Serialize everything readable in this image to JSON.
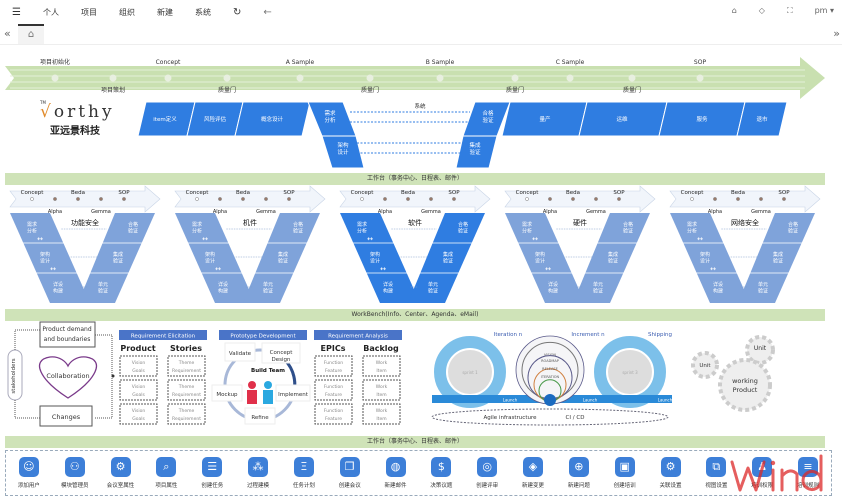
{
  "nav": {
    "menu_icon": "menu-icon",
    "items": [
      "个人",
      "项目",
      "组织",
      "新建",
      "系统"
    ],
    "refresh_icon": "refresh-icon",
    "back_icon": "back-arrow-icon",
    "right_icons": [
      "cloud-icon",
      "tag-icon",
      "fullscreen-icon"
    ],
    "user": "pm ▾"
  },
  "tabs": {
    "prev": "«",
    "next": "»",
    "home_icon": "home-icon",
    "home": "⌂"
  },
  "roadmap": {
    "top": [
      "项目初始化",
      "Concept",
      "A Sample",
      "B Sample",
      "C Sample",
      "SOP"
    ],
    "bottom": [
      "项目策划",
      "质量门",
      "质量门",
      "质量门",
      "质量门"
    ]
  },
  "logo": {
    "tm": "TM",
    "brand_pre": "w",
    "brand_v": "√",
    "brand_post": "orthy",
    "cn": "亚远景科技"
  },
  "process": {
    "top": [
      "item定义",
      "风险评估",
      "概念设计",
      "需求\n分析",
      "合格\n验证",
      "量产",
      "运维",
      "服务",
      "退市"
    ],
    "lower": [
      "架构\n设计",
      "集成\n验证"
    ],
    "system": "系统"
  },
  "workbench_bar": "工作台（事务中心、日程表、邮件）",
  "vmodels": {
    "timeline_top": [
      "Concept",
      "Beda",
      "SOP"
    ],
    "timeline_bottom": [
      "Alpha",
      "Gemma"
    ],
    "left": [
      "需求\n分析",
      "架构\n设计",
      "详设\n构建"
    ],
    "right": [
      "合格\n验证",
      "集成\n验证",
      "单元\n验证"
    ],
    "items": [
      {
        "title": "功能安全",
        "color": "#7fa3da"
      },
      {
        "title": "机件",
        "color": "#7fa3da"
      },
      {
        "title": "软件",
        "color": "#2f7de1"
      },
      {
        "title": "硬件",
        "color": "#7fa3da"
      },
      {
        "title": "网络安全",
        "color": "#7fa3da"
      }
    ]
  },
  "workbench2_bar": "WorkBench(Info、Center、Agenda、eMail)",
  "agile": {
    "demand": "Product demand and boundaries",
    "collaboration": "Collaboration",
    "changes": "Changes",
    "stakeholders": "stakeholders",
    "elicitation": "Requirement Elicitation",
    "product": "Product",
    "stories": "Stories",
    "vision": [
      "Vision",
      "Goals"
    ],
    "theme": [
      "Theme",
      "Requirement"
    ],
    "prototype": "Prototype Development",
    "validate": "Validate",
    "concept": "Concept Design",
    "build": "Build Team",
    "mockup": "Mockup",
    "implement": "Implement",
    "refine": "Refine",
    "analysis": "Requirement Analysis",
    "epics": "EPICs",
    "backlog": "Backlog",
    "function": [
      "Function",
      "Feature"
    ],
    "work": [
      "Work",
      "Item"
    ],
    "iteration": "Iteration n",
    "increment": "Increment n",
    "shipping": "Shipping",
    "sprint1": "sprint 1",
    "sprint3": "sprint 3",
    "launch": "Launch",
    "circles": [
      "VISION",
      "ROADMAP",
      "RELEASE",
      "ITERATION"
    ],
    "infra": "Agile infrastructure",
    "cicd": "CI / CD",
    "unit": "Unit",
    "working": "working Product"
  },
  "bottom_bar": "工作台（事务中心、日程表、邮件）",
  "actions": [
    {
      "label": "添加用户",
      "icon": "add-user-icon",
      "g": "☺"
    },
    {
      "label": "模块管理员",
      "icon": "module-admin-icon",
      "g": "⚇"
    },
    {
      "label": "会议室属性",
      "icon": "gear-icon",
      "g": "⚙"
    },
    {
      "label": "项目属性",
      "icon": "project-search-icon",
      "g": "⌕"
    },
    {
      "label": "创建任务",
      "icon": "task-icon",
      "g": "☰"
    },
    {
      "label": "过程建模",
      "icon": "process-model-icon",
      "g": "⁂"
    },
    {
      "label": "任务计划",
      "icon": "task-plan-icon",
      "g": "Ξ"
    },
    {
      "label": "创建会议",
      "icon": "meeting-icon",
      "g": "❐"
    },
    {
      "label": "新建邮件",
      "icon": "globe-mail-icon",
      "g": "◍"
    },
    {
      "label": "决策议题",
      "icon": "decision-icon",
      "g": "$"
    },
    {
      "label": "创建评审",
      "icon": "review-icon",
      "g": "◎"
    },
    {
      "label": "新建变更",
      "icon": "change-icon",
      "g": "◈"
    },
    {
      "label": "新建问题",
      "icon": "issue-icon",
      "g": "⊕"
    },
    {
      "label": "创建培训",
      "icon": "training-icon",
      "g": "▣"
    },
    {
      "label": "关联设置",
      "icon": "link-settings-icon",
      "g": "⚙"
    },
    {
      "label": "视图设置",
      "icon": "view-settings-icon",
      "g": "⧉"
    },
    {
      "label": "培训权限",
      "icon": "training-permission-icon",
      "g": "♟"
    },
    {
      "label": "培训规则",
      "icon": "training-rule-icon",
      "g": "≡"
    }
  ],
  "watermark": "wind",
  "colors": {
    "blue": "#2f7de1",
    "lightblue": "#7fa3da",
    "green": "#cfe3b8"
  }
}
